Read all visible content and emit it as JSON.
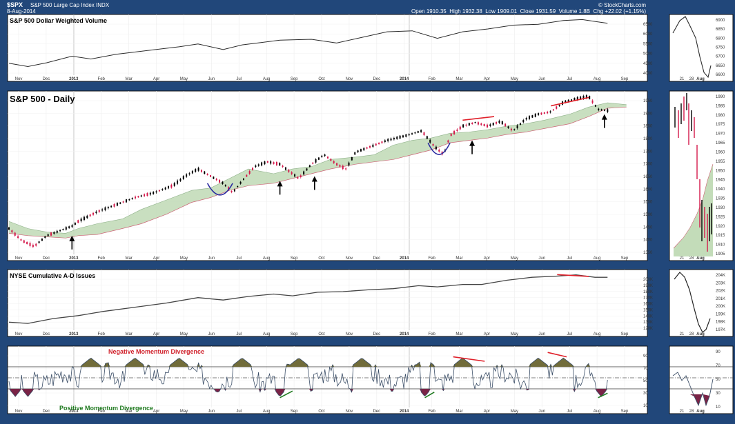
{
  "header": {
    "symbol": "$SPX",
    "description": "S&P 500 Large Cap Index",
    "exchange": "INDX",
    "date": "8-Aug-2014",
    "open": "1910.35",
    "high": "1932.38",
    "low": "1909.01",
    "close": "1931.59",
    "volume": "1.8B",
    "chg": "+22.02 (+1.15%)",
    "credit": "© StockCharts.com",
    "open_label": "Open",
    "high_label": "High",
    "low_label": "Low",
    "close_label": "Close",
    "volume_label": "Volume",
    "chg_label": "Chg"
  },
  "colors": {
    "background": "#21477a",
    "panel": "#ffffff",
    "line": "#2b2b2b",
    "cloud_fill": "#c3dcb9",
    "cloud_edge": "#cc6677",
    "bear_cloud": "#e8c4c8",
    "up_candle": "#000000",
    "down_candle": "#d4184a",
    "cup": "#2a2aa0",
    "neg_divergence": "#e0202a",
    "pos_divergence": "#1f7a1f",
    "momentum_fill": "#716c3a",
    "momentum_low_fill": "#7a2346"
  },
  "x_axis_labels": [
    "Nov",
    "Dec",
    "2013",
    "Feb",
    "Mar",
    "Apr",
    "May",
    "Jun",
    "Jul",
    "Aug",
    "Sep",
    "Oct",
    "Nov",
    "Dec",
    "2014",
    "Feb",
    "Mar",
    "Apr",
    "May",
    "Jun",
    "Jul",
    "Aug",
    "Sep"
  ],
  "side_x_labels": [
    "21",
    "28",
    "Aug"
  ],
  "annotations": {
    "neg_div": "Negative Momentum Divergence",
    "pos_div": "Positive Momentum Divergence"
  },
  "chart_data": [
    {
      "type": "line",
      "title": "S&P 500 Dollar Weighted Volume",
      "y_ticks": [
        "6500",
        "6000",
        "5500",
        "5000",
        "4500",
        "4000"
      ],
      "side_y_ticks": [
        "6900",
        "6850",
        "6800",
        "6750",
        "6700",
        "6650",
        "6600"
      ],
      "ylim": [
        3900,
        6800
      ],
      "points": [
        [
          0,
          4420
        ],
        [
          0.03,
          4250
        ],
        [
          0.06,
          4450
        ],
        [
          0.1,
          4800
        ],
        [
          0.13,
          4650
        ],
        [
          0.17,
          4900
        ],
        [
          0.22,
          5100
        ],
        [
          0.27,
          5300
        ],
        [
          0.3,
          5450
        ],
        [
          0.34,
          5150
        ],
        [
          0.37,
          5400
        ],
        [
          0.43,
          5650
        ],
        [
          0.48,
          5700
        ],
        [
          0.52,
          5500
        ],
        [
          0.56,
          5800
        ],
        [
          0.6,
          6100
        ],
        [
          0.64,
          6150
        ],
        [
          0.68,
          5750
        ],
        [
          0.72,
          6100
        ],
        [
          0.76,
          6250
        ],
        [
          0.8,
          6450
        ],
        [
          0.84,
          6500
        ],
        [
          0.88,
          6700
        ],
        [
          0.91,
          6750
        ],
        [
          0.93,
          6650
        ],
        [
          0.95,
          6550
        ]
      ]
    },
    {
      "type": "candlestick",
      "title": "S&P 500 - Daily",
      "y_ticks": [
        "1950",
        "1900",
        "1850",
        "1800",
        "1750",
        "1700",
        "1650",
        "1600",
        "1550",
        "1500",
        "1450",
        "1400",
        "1350"
      ],
      "side_y_ticks": [
        "1990",
        "1985",
        "1980",
        "1975",
        "1970",
        "1965",
        "1960",
        "1955",
        "1950",
        "1945",
        "1940",
        "1935",
        "1930",
        "1925",
        "1920",
        "1915",
        "1910",
        "1905"
      ],
      "ylim": [
        1330,
        1990
      ],
      "path": [
        [
          0,
          1430
        ],
        [
          0.02,
          1380
        ],
        [
          0.04,
          1355
        ],
        [
          0.06,
          1400
        ],
        [
          0.08,
          1420
        ],
        [
          0.1,
          1440
        ],
        [
          0.11,
          1460
        ],
        [
          0.14,
          1500
        ],
        [
          0.17,
          1530
        ],
        [
          0.2,
          1560
        ],
        [
          0.23,
          1580
        ],
        [
          0.26,
          1610
        ],
        [
          0.28,
          1650
        ],
        [
          0.3,
          1680
        ],
        [
          0.32,
          1650
        ],
        [
          0.34,
          1620
        ],
        [
          0.355,
          1580
        ],
        [
          0.37,
          1630
        ],
        [
          0.39,
          1690
        ],
        [
          0.41,
          1710
        ],
        [
          0.43,
          1700
        ],
        [
          0.45,
          1660
        ],
        [
          0.46,
          1640
        ],
        [
          0.48,
          1700
        ],
        [
          0.5,
          1740
        ],
        [
          0.52,
          1700
        ],
        [
          0.535,
          1680
        ],
        [
          0.55,
          1750
        ],
        [
          0.57,
          1770
        ],
        [
          0.6,
          1800
        ],
        [
          0.63,
          1820
        ],
        [
          0.655,
          1840
        ],
        [
          0.675,
          1775
        ],
        [
          0.69,
          1740
        ],
        [
          0.7,
          1820
        ],
        [
          0.72,
          1860
        ],
        [
          0.74,
          1875
        ],
        [
          0.76,
          1860
        ],
        [
          0.78,
          1880
        ],
        [
          0.8,
          1840
        ],
        [
          0.82,
          1890
        ],
        [
          0.84,
          1910
        ],
        [
          0.86,
          1920
        ],
        [
          0.88,
          1960
        ],
        [
          0.9,
          1975
        ],
        [
          0.92,
          1985
        ],
        [
          0.935,
          1930
        ],
        [
          0.95,
          1925
        ]
      ],
      "cloud_top": [
        [
          0,
          1460
        ],
        [
          0.03,
          1430
        ],
        [
          0.06,
          1415
        ],
        [
          0.09,
          1410
        ],
        [
          0.11,
          1430
        ],
        [
          0.14,
          1450
        ],
        [
          0.18,
          1470
        ],
        [
          0.21,
          1510
        ],
        [
          0.25,
          1550
        ],
        [
          0.29,
          1590
        ],
        [
          0.32,
          1600
        ],
        [
          0.35,
          1640
        ],
        [
          0.38,
          1680
        ],
        [
          0.42,
          1660
        ],
        [
          0.45,
          1680
        ],
        [
          0.48,
          1690
        ],
        [
          0.51,
          1720
        ],
        [
          0.55,
          1730
        ],
        [
          0.58,
          1740
        ],
        [
          0.61,
          1780
        ],
        [
          0.64,
          1800
        ],
        [
          0.67,
          1810
        ],
        [
          0.7,
          1830
        ],
        [
          0.73,
          1835
        ],
        [
          0.76,
          1845
        ],
        [
          0.79,
          1860
        ],
        [
          0.82,
          1870
        ],
        [
          0.85,
          1885
        ],
        [
          0.89,
          1910
        ],
        [
          0.92,
          1940
        ],
        [
          0.95,
          1958
        ],
        [
          0.98,
          1950
        ]
      ],
      "cloud_bottom": [
        [
          0,
          1410
        ],
        [
          0.03,
          1400
        ],
        [
          0.06,
          1395
        ],
        [
          0.09,
          1390
        ],
        [
          0.11,
          1400
        ],
        [
          0.14,
          1405
        ],
        [
          0.18,
          1430
        ],
        [
          0.21,
          1450
        ],
        [
          0.25,
          1490
        ],
        [
          0.29,
          1540
        ],
        [
          0.32,
          1560
        ],
        [
          0.35,
          1590
        ],
        [
          0.38,
          1610
        ],
        [
          0.42,
          1620
        ],
        [
          0.45,
          1640
        ],
        [
          0.48,
          1660
        ],
        [
          0.51,
          1680
        ],
        [
          0.55,
          1700
        ],
        [
          0.58,
          1710
        ],
        [
          0.61,
          1720
        ],
        [
          0.64,
          1740
        ],
        [
          0.67,
          1760
        ],
        [
          0.7,
          1790
        ],
        [
          0.73,
          1800
        ],
        [
          0.76,
          1810
        ],
        [
          0.79,
          1825
        ],
        [
          0.82,
          1835
        ],
        [
          0.85,
          1850
        ],
        [
          0.89,
          1870
        ],
        [
          0.92,
          1900
        ],
        [
          0.95,
          1935
        ],
        [
          0.98,
          1940
        ]
      ],
      "arrows": [
        [
          0.1,
          1400
        ],
        [
          0.43,
          1630
        ],
        [
          0.485,
          1650
        ],
        [
          0.735,
          1800
        ],
        [
          0.945,
          1910
        ]
      ],
      "cups": [
        [
          0.315,
          0.355,
          1620
        ],
        [
          0.665,
          0.7,
          1790
        ]
      ],
      "resistance_lines": [
        [
          0.72,
          1885,
          0.77,
          1900
        ],
        [
          0.86,
          1945,
          0.92,
          1980
        ]
      ]
    },
    {
      "type": "line",
      "title": "NYSE Cumulative A-D Issues",
      "y_ticks": [
        "200K",
        "190K",
        "180K",
        "170K",
        "160K",
        "150K",
        "140K",
        "130K",
        "120K"
      ],
      "side_y_ticks": [
        "204K",
        "203K",
        "202K",
        "201K",
        "200K",
        "199K",
        "198K",
        "197K"
      ],
      "ylim": [
        115,
        206
      ],
      "points": [
        [
          0,
          125
        ],
        [
          0.03,
          123
        ],
        [
          0.07,
          131
        ],
        [
          0.11,
          136
        ],
        [
          0.15,
          143
        ],
        [
          0.2,
          150
        ],
        [
          0.25,
          157
        ],
        [
          0.3,
          166
        ],
        [
          0.34,
          162
        ],
        [
          0.38,
          168
        ],
        [
          0.42,
          172
        ],
        [
          0.45,
          169
        ],
        [
          0.49,
          175
        ],
        [
          0.53,
          176
        ],
        [
          0.57,
          179
        ],
        [
          0.61,
          181
        ],
        [
          0.65,
          186
        ],
        [
          0.68,
          184
        ],
        [
          0.72,
          188
        ],
        [
          0.75,
          188
        ],
        [
          0.79,
          195
        ],
        [
          0.83,
          200
        ],
        [
          0.87,
          202
        ],
        [
          0.9,
          204
        ],
        [
          0.93,
          200
        ],
        [
          0.95,
          200
        ]
      ]
    },
    {
      "type": "line",
      "title": "",
      "y_ticks": [
        "90",
        "70",
        "50",
        "30",
        "10"
      ],
      "side_y_ticks": [
        "90",
        "70",
        "50",
        "30",
        "10"
      ],
      "ylim": [
        0,
        100
      ]
    }
  ]
}
